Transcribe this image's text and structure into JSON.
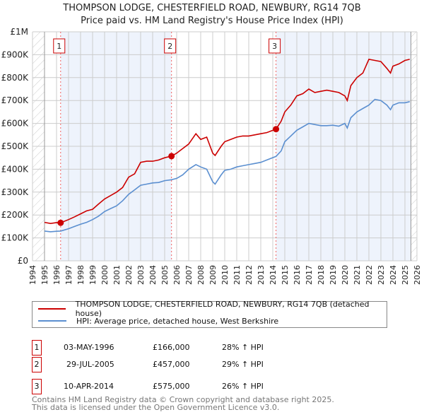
{
  "title": "THOMPSON LODGE, CHESTERFIELD ROAD, NEWBURY, RG14 7QB",
  "subtitle": "Price paid vs. HM Land Registry's House Price Index (HPI)",
  "colors": {
    "property": "#cc0000",
    "hpi": "#5b8fd0",
    "band": "#eef3fc",
    "marker": "#cc0000"
  },
  "chart_data": {
    "type": "line",
    "xlim": [
      1994,
      2026
    ],
    "ylim": [
      0,
      1000000
    ],
    "x_ticks": [
      "1994",
      "1995",
      "1996",
      "1997",
      "1998",
      "1999",
      "2000",
      "2001",
      "2002",
      "2003",
      "2004",
      "2005",
      "2006",
      "2007",
      "2008",
      "2009",
      "2010",
      "2011",
      "2012",
      "2013",
      "2014",
      "2015",
      "2016",
      "2017",
      "2018",
      "2019",
      "2020",
      "2021",
      "2022",
      "2023",
      "2024",
      "2025",
      "2026"
    ],
    "y_ticks": [
      {
        "v": 0,
        "label": "£0"
      },
      {
        "v": 100000,
        "label": "£100K"
      },
      {
        "v": 200000,
        "label": "£200K"
      },
      {
        "v": 300000,
        "label": "£300K"
      },
      {
        "v": 400000,
        "label": "£400K"
      },
      {
        "v": 500000,
        "label": "£500K"
      },
      {
        "v": 600000,
        "label": "£600K"
      },
      {
        "v": 700000,
        "label": "£700K"
      },
      {
        "v": 800000,
        "label": "£800K"
      },
      {
        "v": 900000,
        "label": "£900K"
      },
      {
        "v": 1000000,
        "label": "£1M"
      }
    ],
    "grid": true,
    "series": [
      {
        "name": "THOMPSON LODGE, CHESTERFIELD ROAD, NEWBURY, RG14 7QB (detached house)",
        "x": [
          1995,
          1995.5,
          1996,
          1996.34,
          1997,
          1997.5,
          1998,
          1998.5,
          1999,
          1999.5,
          2000,
          2000.5,
          2001,
          2001.5,
          2002,
          2002.5,
          2003,
          2003.5,
          2004,
          2004.5,
          2005,
          2005.57,
          2006,
          2006.5,
          2007,
          2007.6,
          2008,
          2008.5,
          2009,
          2009.2,
          2009.7,
          2010,
          2010.5,
          2011,
          2011.5,
          2012,
          2012.5,
          2013,
          2013.5,
          2014.27,
          2014.7,
          2015,
          2015.5,
          2016,
          2016.5,
          2017,
          2017.5,
          2018,
          2018.5,
          2019,
          2019.5,
          2020,
          2020.2,
          2020.5,
          2021,
          2021.5,
          2022,
          2022.5,
          2023,
          2023.5,
          2023.8,
          2024,
          2024.5,
          2025,
          2025.4
        ],
        "y": [
          168000,
          163000,
          167000,
          166000,
          180000,
          192000,
          205000,
          218000,
          225000,
          248000,
          270000,
          285000,
          300000,
          320000,
          365000,
          380000,
          430000,
          435000,
          435000,
          440000,
          450000,
          457000,
          470000,
          490000,
          510000,
          555000,
          530000,
          540000,
          470000,
          460000,
          500000,
          520000,
          530000,
          540000,
          545000,
          545000,
          550000,
          555000,
          560000,
          575000,
          610000,
          650000,
          680000,
          720000,
          730000,
          750000,
          735000,
          740000,
          745000,
          740000,
          735000,
          720000,
          700000,
          765000,
          800000,
          820000,
          880000,
          875000,
          870000,
          840000,
          820000,
          850000,
          860000,
          875000,
          880000
        ]
      },
      {
        "name": "HPI: Average price, detached house, West Berkshire",
        "x": [
          1995,
          1995.5,
          1996,
          1996.34,
          1997,
          1997.5,
          1998,
          1998.5,
          1999,
          1999.5,
          2000,
          2000.5,
          2001,
          2001.5,
          2002,
          2002.5,
          2003,
          2003.5,
          2004,
          2004.5,
          2005,
          2005.57,
          2006,
          2006.5,
          2007,
          2007.6,
          2008,
          2008.5,
          2009,
          2009.2,
          2009.7,
          2010,
          2010.5,
          2011,
          2011.5,
          2012,
          2012.5,
          2013,
          2013.5,
          2014.27,
          2014.7,
          2015,
          2015.5,
          2016,
          2016.5,
          2017,
          2017.5,
          2018,
          2018.5,
          2019,
          2019.5,
          2020,
          2020.2,
          2020.5,
          2021,
          2021.5,
          2022,
          2022.5,
          2023,
          2023.5,
          2023.8,
          2024,
          2024.5,
          2025,
          2025.4
        ],
        "y": [
          130000,
          127000,
          129000,
          130000,
          140000,
          150000,
          160000,
          168000,
          180000,
          195000,
          215000,
          228000,
          240000,
          262000,
          290000,
          310000,
          330000,
          335000,
          340000,
          342000,
          350000,
          354000,
          360000,
          375000,
          400000,
          420000,
          410000,
          400000,
          345000,
          335000,
          375000,
          395000,
          400000,
          410000,
          415000,
          420000,
          425000,
          430000,
          440000,
          456000,
          480000,
          520000,
          545000,
          570000,
          585000,
          600000,
          595000,
          590000,
          590000,
          592000,
          588000,
          600000,
          580000,
          625000,
          650000,
          665000,
          680000,
          705000,
          700000,
          680000,
          660000,
          680000,
          690000,
          690000,
          695000
        ]
      }
    ],
    "sales": [
      {
        "id": "1",
        "x": 1996.34,
        "y": 166000
      },
      {
        "id": "2",
        "x": 2005.57,
        "y": 457000
      },
      {
        "id": "3",
        "x": 2014.27,
        "y": 575000
      }
    ],
    "legend_placement": "below"
  },
  "legend": {
    "property": "THOMPSON LODGE, CHESTERFIELD ROAD, NEWBURY, RG14 7QB (detached house)",
    "hpi": "HPI: Average price, detached house, West Berkshire"
  },
  "transactions": [
    {
      "id": "1",
      "date": "03-MAY-1996",
      "price": "£166,000",
      "change": "28% ↑ HPI"
    },
    {
      "id": "2",
      "date": "29-JUL-2005",
      "price": "£457,000",
      "change": "29% ↑ HPI"
    },
    {
      "id": "3",
      "date": "10-APR-2014",
      "price": "£575,000",
      "change": "26% ↑ HPI"
    }
  ],
  "footer": {
    "line1": "Contains HM Land Registry data © Crown copyright and database right 2025.",
    "line2": "This data is licensed under the Open Government Licence v3.0."
  }
}
